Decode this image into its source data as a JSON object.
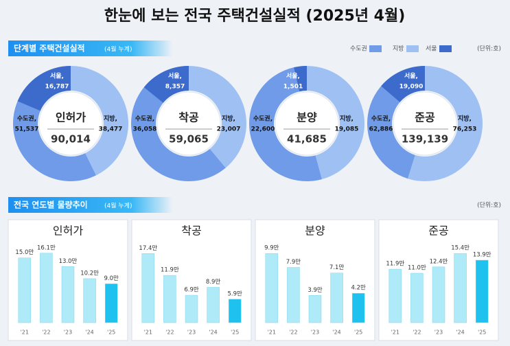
{
  "title": "한눈에 보는 전국 주택건설실적 (2025년 4월)",
  "section1": {
    "title": "단계별 주택건설실적",
    "note": "(4월 누계)",
    "unit": "(단위:호)"
  },
  "section2": {
    "title": "전국 연도별 물량추이",
    "note": "(4월 누계)",
    "unit": "(단위:호)"
  },
  "chart_data": [
    {
      "type": "donut",
      "title": "인허가",
      "total": {
        "value": 90014,
        "label": "90,014"
      },
      "series": [
        {
          "name": "수도권",
          "label": "수도권,",
          "color": "#6f9be8",
          "value": 51537,
          "value_label": "51,537"
        },
        {
          "name": "지방",
          "label": "지방,",
          "color": "#9fc0f3",
          "value": 38477,
          "value_label": "38,477"
        },
        {
          "name": "서울",
          "label": "서울,",
          "color": "#3d6bcc",
          "value": 16787,
          "value_label": "16,787"
        }
      ]
    },
    {
      "type": "donut",
      "title": "착공",
      "total": {
        "value": 59065,
        "label": "59,065"
      },
      "series": [
        {
          "name": "수도권",
          "label": "수도권,",
          "color": "#6f9be8",
          "value": 36058,
          "value_label": "36,058"
        },
        {
          "name": "지방",
          "label": "지방,",
          "color": "#9fc0f3",
          "value": 23007,
          "value_label": "23,007"
        },
        {
          "name": "서울",
          "label": "서울,",
          "color": "#3d6bcc",
          "value": 8357,
          "value_label": "8,357"
        }
      ]
    },
    {
      "type": "donut",
      "title": "분양",
      "total": {
        "value": 41685,
        "label": "41,685"
      },
      "series": [
        {
          "name": "수도권",
          "label": "수도권,",
          "color": "#6f9be8",
          "value": 22600,
          "value_label": "22,600"
        },
        {
          "name": "지방",
          "label": "지방,",
          "color": "#9fc0f3",
          "value": 19085,
          "value_label": "19,085"
        },
        {
          "name": "서울",
          "label": "서울,",
          "color": "#3d6bcc",
          "value": 1501,
          "value_label": "1,501"
        }
      ]
    },
    {
      "type": "donut",
      "title": "준공",
      "total": {
        "value": 139139,
        "label": "139,139"
      },
      "series": [
        {
          "name": "수도권",
          "label": "수도권,",
          "color": "#6f9be8",
          "value": 62886,
          "value_label": "62,886"
        },
        {
          "name": "지방",
          "label": "지방,",
          "color": "#9fc0f3",
          "value": 76253,
          "value_label": "76,253"
        },
        {
          "name": "서울",
          "label": "서울,",
          "color": "#3d6bcc",
          "value": 19090,
          "value_label": "19,090"
        }
      ]
    },
    {
      "type": "bar",
      "title": "인허가",
      "categories": [
        "'21",
        "'22",
        "'23",
        "'24",
        "'25"
      ],
      "values": [
        15.0,
        16.1,
        13.0,
        10.2,
        9.0
      ],
      "value_labels": [
        "15.0만",
        "16.1만",
        "13.0만",
        "10.2만",
        "9.0만"
      ],
      "colors": [
        "#aeeaf7",
        "#aeeaf7",
        "#aeeaf7",
        "#aeeaf7",
        "#1fc1ef"
      ],
      "ylim": [
        0,
        17.5
      ]
    },
    {
      "type": "bar",
      "title": "착공",
      "categories": [
        "'21",
        "'22",
        "'23",
        "'24",
        "'25"
      ],
      "values": [
        17.4,
        11.9,
        6.9,
        8.9,
        5.9
      ],
      "value_labels": [
        "17.4만",
        "11.9만",
        "6.9만",
        "8.9만",
        "5.9만"
      ],
      "colors": [
        "#aeeaf7",
        "#aeeaf7",
        "#aeeaf7",
        "#aeeaf7",
        "#1fc1ef"
      ],
      "ylim": [
        0,
        19
      ]
    },
    {
      "type": "bar",
      "title": "분양",
      "categories": [
        "'21",
        "'22",
        "'23",
        "'24",
        "'25"
      ],
      "values": [
        9.9,
        7.9,
        3.9,
        7.1,
        4.2
      ],
      "value_labels": [
        "9.9만",
        "7.9만",
        "3.9만",
        "7.1만",
        "4.2만"
      ],
      "colors": [
        "#aeeaf7",
        "#aeeaf7",
        "#aeeaf7",
        "#aeeaf7",
        "#1fc1ef"
      ],
      "ylim": [
        0,
        10.8
      ]
    },
    {
      "type": "bar",
      "title": "준공",
      "categories": [
        "'21",
        "'22",
        "'23",
        "'24",
        "'25"
      ],
      "values": [
        11.9,
        11.0,
        12.4,
        15.4,
        13.9
      ],
      "value_labels": [
        "11.9만",
        "11.0만",
        "12.4만",
        "15.4만",
        "13.9만"
      ],
      "colors": [
        "#aeeaf7",
        "#aeeaf7",
        "#aeeaf7",
        "#aeeaf7",
        "#1fc1ef"
      ],
      "ylim": [
        0,
        16.8
      ]
    }
  ]
}
